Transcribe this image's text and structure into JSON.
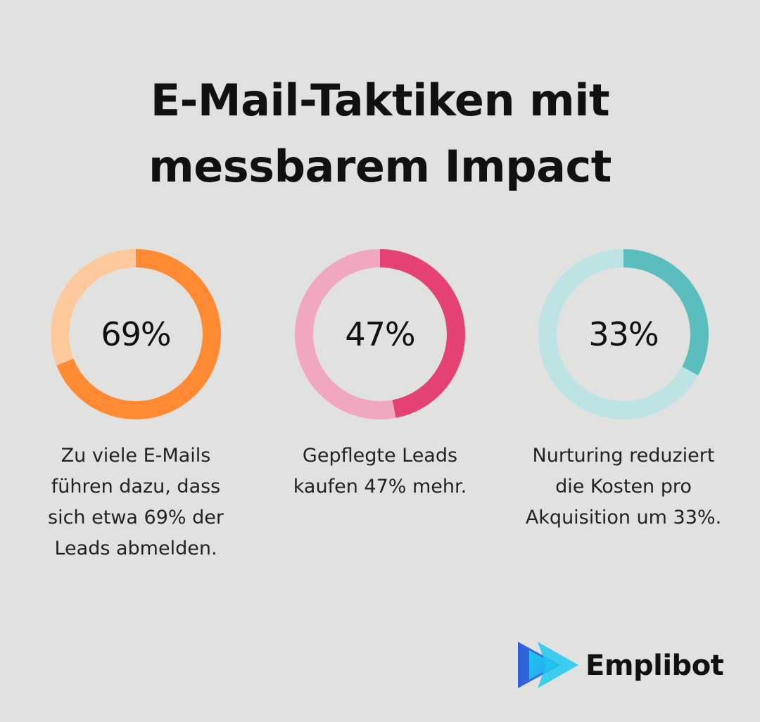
{
  "title": {
    "line1": "E-Mail-Taktiken mit",
    "line2": "messbarem Impact"
  },
  "chart_data": {
    "type": "pie",
    "variant": "donut",
    "items": [
      {
        "value": 69,
        "label": "69%",
        "caption": "Zu viele E-Mails führen dazu, dass sich etwa 69% der Leads abmelden.",
        "caption_lines": [
          "Zu viele E-Mails",
          "führen dazu, dass",
          "sich etwa 69% der",
          "Leads abmelden."
        ],
        "color": "#ff8a33",
        "track_color": "#fdc89c"
      },
      {
        "value": 47,
        "label": "47%",
        "caption": "Gepflegte Leads kaufen 47% mehr.",
        "caption_lines": [
          "Gepflegte Leads",
          "kaufen 47% mehr."
        ],
        "color": "#e44174",
        "track_color": "#f1a7bf"
      },
      {
        "value": 33,
        "label": "33%",
        "caption": "Nurturing reduziert die Kosten pro Akquisition um 33%.",
        "caption_lines": [
          "Nurturing reduziert",
          "die Kosten pro",
          "Akquisition um 33%."
        ],
        "color": "#5bbdbd",
        "track_color": "#bde3e4"
      }
    ]
  },
  "brand": {
    "name": "Emplibot",
    "icon": "emplibot-play-logo-icon",
    "colors": [
      "#2f5fd8",
      "#1ec8f0"
    ]
  }
}
